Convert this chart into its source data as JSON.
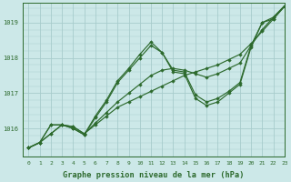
{
  "title": "Graphe pression niveau de la mer (hPa)",
  "bg_color": "#cce8e8",
  "line_color": "#2d6a2d",
  "grid_color": "#a8cccc",
  "xlim": [
    -0.5,
    23
  ],
  "ylim": [
    1015.2,
    1019.55
  ],
  "yticks": [
    1016,
    1017,
    1018,
    1019
  ],
  "xticks": [
    0,
    1,
    2,
    3,
    4,
    5,
    6,
    7,
    8,
    9,
    10,
    11,
    12,
    13,
    14,
    15,
    16,
    17,
    18,
    19,
    20,
    21,
    22,
    23
  ],
  "series": [
    [
      1015.45,
      1015.6,
      1015.85,
      1016.1,
      1016.05,
      1015.85,
      1016.1,
      1016.35,
      1016.6,
      1016.75,
      1016.9,
      1017.05,
      1017.2,
      1017.35,
      1017.5,
      1017.6,
      1017.7,
      1017.8,
      1017.95,
      1018.1,
      1018.4,
      1018.75,
      1019.1,
      1019.45
    ],
    [
      1015.45,
      1015.6,
      1015.85,
      1016.1,
      1016.05,
      1015.85,
      1016.15,
      1016.45,
      1016.75,
      1017.0,
      1017.25,
      1017.5,
      1017.65,
      1017.7,
      1017.65,
      1017.55,
      1017.45,
      1017.55,
      1017.7,
      1017.85,
      1018.35,
      1018.8,
      1019.15,
      1019.47
    ],
    [
      1015.45,
      1015.6,
      1016.1,
      1016.1,
      1016.0,
      1015.82,
      1016.3,
      1016.75,
      1017.3,
      1017.65,
      1018.0,
      1018.35,
      1018.15,
      1017.65,
      1017.6,
      1016.95,
      1016.75,
      1016.85,
      1017.05,
      1017.3,
      1018.35,
      1019.0,
      1019.15,
      1019.47
    ],
    [
      1015.45,
      1015.6,
      1016.1,
      1016.1,
      1016.0,
      1015.82,
      1016.35,
      1016.8,
      1017.35,
      1017.7,
      1018.1,
      1018.45,
      1018.15,
      1017.6,
      1017.55,
      1016.85,
      1016.65,
      1016.75,
      1017.0,
      1017.25,
      1018.3,
      1019.0,
      1019.1,
      1019.47
    ]
  ]
}
